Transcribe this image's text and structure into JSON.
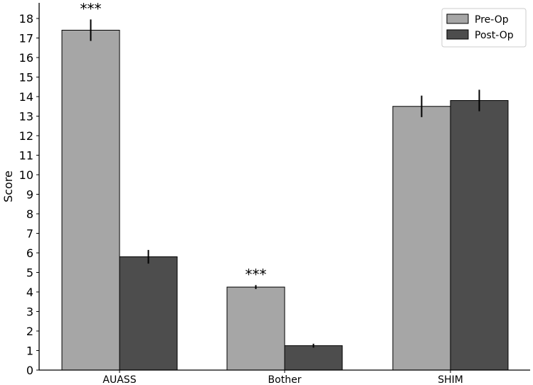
{
  "chart_data": {
    "type": "bar",
    "title": "",
    "xlabel": "",
    "ylabel": "Score",
    "ylim": [
      0,
      18.8
    ],
    "yticks": [
      0,
      1,
      2,
      3,
      4,
      5,
      6,
      7,
      8,
      9,
      10,
      11,
      12,
      13,
      14,
      15,
      16,
      17,
      18
    ],
    "categories": [
      "AUASS",
      "Bother",
      "SHIM"
    ],
    "series": [
      {
        "name": "Pre-Op",
        "color": "#a6a6a6",
        "values": [
          17.4,
          4.25,
          13.5
        ],
        "errors": [
          0.55,
          0.1,
          0.55
        ]
      },
      {
        "name": "Post-Op",
        "color": "#4d4d4d",
        "values": [
          5.8,
          1.25,
          13.8
        ],
        "errors": [
          0.35,
          0.1,
          0.55
        ]
      }
    ],
    "annotations": [
      {
        "text": "***",
        "category": "AUASS",
        "series": "Pre-Op"
      },
      {
        "text": "***",
        "category": "Bother",
        "series": "Pre-Op"
      }
    ],
    "legend": {
      "position": "top-right"
    },
    "grid": false
  }
}
